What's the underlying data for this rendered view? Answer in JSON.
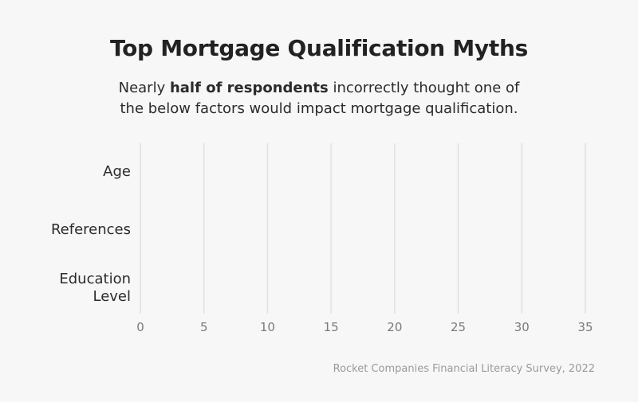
{
  "chart_data": {
    "type": "bar",
    "title": "Top Mortgage Qualification Myths",
    "subtitle": {
      "before": "Nearly ",
      "emphasis": "half of respondents",
      "after_line1": " incorrectly thought one of",
      "line2": "the below factors would impact mortgage qualification."
    },
    "categories": [
      {
        "lines": [
          "Age"
        ]
      },
      {
        "lines": [
          "References"
        ]
      },
      {
        "lines": [
          "Education",
          "Level"
        ]
      }
    ],
    "values": [
      null,
      null,
      null
    ],
    "xticks": [
      "0",
      "5",
      "10",
      "15",
      "20",
      "25",
      "30",
      "35"
    ],
    "xlim": [
      0,
      35
    ],
    "grid": true,
    "orientation": "horizontal",
    "source": "Rocket Companies Financial Literacy Survey, 2022"
  },
  "colors": {
    "gridline": "#e1e1e1",
    "tick_text": "#7a7a7a",
    "category_text": "#2b2b2b"
  }
}
